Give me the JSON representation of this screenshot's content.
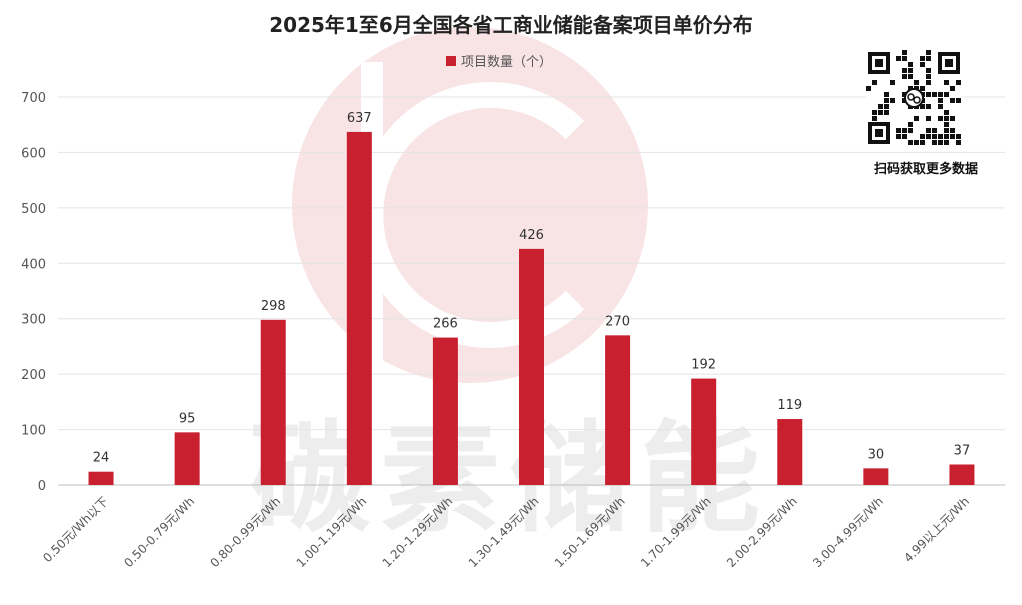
{
  "chart_data": {
    "type": "bar",
    "title": "2025年1至6月全国各省工商业储能备案项目单价分布",
    "legend_position": "top",
    "grid": true,
    "ylim": [
      0,
      700
    ],
    "yticks": [
      0,
      100,
      200,
      300,
      400,
      500,
      600,
      700
    ],
    "categories": [
      "0.50元/Wh以下",
      "0.50-0.79元/Wh",
      "0.80-0.99元/Wh",
      "1.00-1.19元/Wh",
      "1.20-1.29元/Wh",
      "1.30-1.49元/Wh",
      "1.50-1.69元/Wh",
      "1.70-1.99元/Wh",
      "2.00-2.99元/Wh",
      "3.00-4.99元/Wh",
      "4.99以上元/Wh"
    ],
    "series": [
      {
        "name": "项目数量（个）",
        "values": [
          24,
          95,
          298,
          637,
          266,
          426,
          270,
          192,
          119,
          30,
          37
        ],
        "color": "#C8202F"
      }
    ]
  },
  "watermark": {
    "text": "碳素储能",
    "logo_color": "#C8202F"
  },
  "qr": {
    "caption": "扫码获取更多数据",
    "icon": "qr-code-icon"
  }
}
